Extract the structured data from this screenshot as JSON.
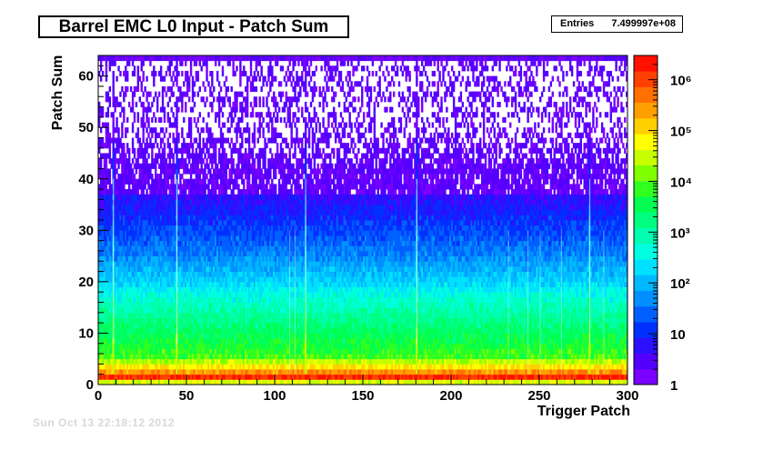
{
  "chart_data": {
    "type": "heatmap",
    "title": "Barrel EMC L0 Input - Patch Sum",
    "xlabel": "Trigger Patch",
    "ylabel": "Patch Sum",
    "stats": {
      "label": "Entries",
      "value": "7.499997e+08"
    },
    "xlim": [
      0,
      300
    ],
    "ylim": [
      0,
      64
    ],
    "x_ticks": [
      "0",
      "50",
      "100",
      "150",
      "200",
      "250",
      "300"
    ],
    "y_ticks": [
      "0",
      "10",
      "20",
      "30",
      "40",
      "50",
      "60"
    ],
    "z_scale": "log",
    "z_range": [
      1,
      3000000
    ],
    "z_ticks": [
      "1",
      "10",
      "10²",
      "10³",
      "10⁴",
      "10⁵",
      "10⁶"
    ],
    "z_tick_values": [
      1,
      10,
      100,
      1000,
      10000,
      100000,
      1000000
    ],
    "bright_trigger_patches": [
      8,
      44,
      117,
      180,
      278
    ],
    "dim_trigger_patches": [
      108,
      111,
      232,
      243,
      250,
      262,
      286
    ],
    "approx_counts_by_patch_sum": [
      {
        "patch_sum": 1,
        "counts": 1500000
      },
      {
        "patch_sum": 2,
        "counts": 300000
      },
      {
        "patch_sum": 5,
        "counts": 8000
      },
      {
        "patch_sum": 10,
        "counts": 2500
      },
      {
        "patch_sum": 15,
        "counts": 700
      },
      {
        "patch_sum": 20,
        "counts": 150
      },
      {
        "patch_sum": 25,
        "counts": 40
      },
      {
        "patch_sum": 30,
        "counts": 15
      },
      {
        "patch_sum": 35,
        "counts": 6
      },
      {
        "patch_sum": 40,
        "counts": 3
      },
      {
        "patch_sum": 50,
        "counts": 1
      },
      {
        "patch_sum": 63,
        "counts": 1
      }
    ],
    "palette": [
      "#7a00ff",
      "#5500ff",
      "#2a10ff",
      "#0030ff",
      "#0060ff",
      "#0090ff",
      "#00b8ff",
      "#00e0ff",
      "#00ffe0",
      "#00ffb0",
      "#00ff80",
      "#00ff50",
      "#30ff20",
      "#80ff00",
      "#c8ff00",
      "#ffff00",
      "#ffd000",
      "#ffa000",
      "#ff7000",
      "#ff4000",
      "#ff1000"
    ]
  },
  "footer": "Sun Oct 13 22:18:12 2012"
}
